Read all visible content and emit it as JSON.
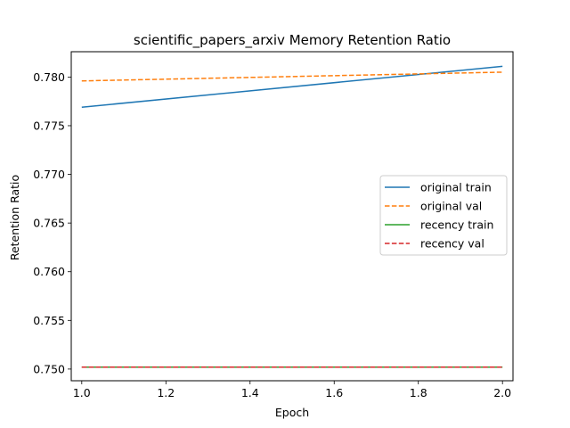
{
  "chart_data": {
    "type": "line",
    "title": "scientific_papers_arxiv Memory Retention Ratio",
    "xlabel": "Epoch",
    "ylabel": "Retention Ratio",
    "xlim": [
      0.975,
      2.025
    ],
    "ylim": [
      0.7488,
      0.7826
    ],
    "x_ticks": [
      1.0,
      1.2,
      1.4,
      1.6,
      1.8,
      2.0
    ],
    "x_tick_labels": [
      "1.0",
      "1.2",
      "1.4",
      "1.6",
      "1.8",
      "2.0"
    ],
    "y_ticks": [
      0.75,
      0.755,
      0.76,
      0.765,
      0.77,
      0.775,
      0.78
    ],
    "y_tick_labels": [
      "0.750",
      "0.755",
      "0.760",
      "0.765",
      "0.770",
      "0.775",
      "0.780"
    ],
    "grid": false,
    "legend_position": "center-right",
    "series": [
      {
        "name": "original train",
        "x": [
          1.0,
          2.0
        ],
        "y": [
          0.7769,
          0.7811
        ],
        "color": "#1f77b4",
        "style": "solid"
      },
      {
        "name": "original val",
        "x": [
          1.0,
          2.0
        ],
        "y": [
          0.7796,
          0.7805
        ],
        "color": "#ff7f0e",
        "style": "dashed"
      },
      {
        "name": "recency train",
        "x": [
          1.0,
          2.0
        ],
        "y": [
          0.7502,
          0.7502
        ],
        "color": "#2ca02c",
        "style": "solid"
      },
      {
        "name": "recency val",
        "x": [
          1.0,
          2.0
        ],
        "y": [
          0.7502,
          0.7502
        ],
        "color": "#d62728",
        "style": "dashed"
      }
    ]
  }
}
